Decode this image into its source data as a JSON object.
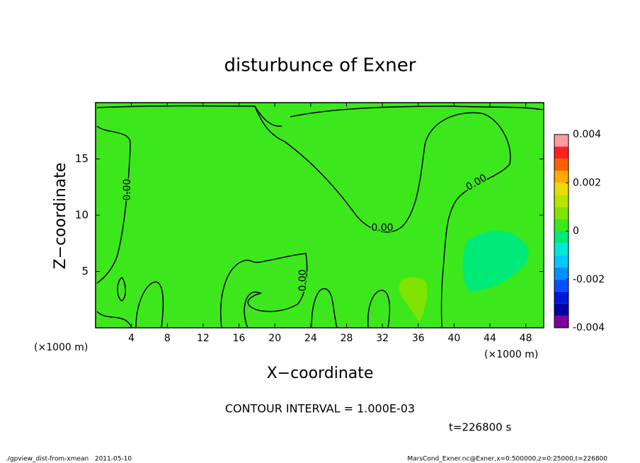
{
  "chart_data": {
    "type": "contour",
    "title": "disturbunce of Exner",
    "x_label": "X−coordinate",
    "y_label": "Z−coordinate",
    "x_unit": "(×1000 m)",
    "y_unit": "(×1000 m)",
    "xlim": [
      0,
      50
    ],
    "ylim": [
      0,
      20
    ],
    "xticks": [
      4,
      8,
      12,
      16,
      20,
      24,
      28,
      32,
      36,
      40,
      44,
      48
    ],
    "yticks": [
      5,
      10,
      15
    ],
    "contour_labels": [
      "0.00",
      "0.00",
      "0.00",
      "0.00"
    ],
    "colorbar": {
      "levels": [
        -0.004,
        -0.0035,
        -0.003,
        -0.0025,
        -0.002,
        -0.0015,
        -0.001,
        -0.0005,
        0,
        0.0005,
        0.001,
        0.0015,
        0.002,
        0.0025,
        0.003,
        0.0035,
        0.004
      ],
      "colors": [
        "#8000a0",
        "#0000a8",
        "#0018d8",
        "#0050ff",
        "#0090ff",
        "#00c8ff",
        "#00e8d8",
        "#00ea78",
        "#3ce81c",
        "#80e400",
        "#b8e400",
        "#e8dc00",
        "#ffaa00",
        "#ff6000",
        "#ff2020",
        "#ff9c9c"
      ],
      "ticks": [
        -0.004,
        -0.002,
        0,
        0.002,
        0.004
      ]
    },
    "contour_interval_text": "CONTOUR INTERVAL = 1.000E-03",
    "time_text": "t=226800 s",
    "footer_left": "./gpview_dist-from-xmean   2011-05-10",
    "footer_right": "MarsCond_Exner.nc@Exner,x=0:500000,z=0:25000,t=226800"
  }
}
